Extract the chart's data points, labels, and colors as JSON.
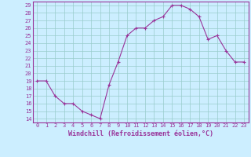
{
  "x": [
    0,
    1,
    2,
    3,
    4,
    5,
    6,
    7,
    8,
    9,
    10,
    11,
    12,
    13,
    14,
    15,
    16,
    17,
    18,
    19,
    20,
    21,
    22,
    23
  ],
  "y": [
    19,
    19,
    17,
    16,
    16,
    15,
    14.5,
    14,
    18.5,
    21.5,
    25,
    26,
    26,
    27,
    27.5,
    29,
    29,
    28.5,
    27.5,
    24.5,
    25,
    23,
    21.5,
    21.5
  ],
  "line_color": "#993399",
  "marker": "+",
  "marker_color": "#993399",
  "bg_color": "#cceeff",
  "grid_color": "#99cccc",
  "xlabel": "Windchill (Refroidissement éolien,°C)",
  "xlabel_color": "#993399",
  "tick_color": "#993399",
  "spine_color": "#993399",
  "ylim": [
    13.5,
    29.5
  ],
  "xlim": [
    -0.5,
    23.5
  ],
  "yticks": [
    14,
    15,
    16,
    17,
    18,
    19,
    20,
    21,
    22,
    23,
    24,
    25,
    26,
    27,
    28,
    29
  ],
  "xticks": [
    0,
    1,
    2,
    3,
    4,
    5,
    6,
    7,
    8,
    9,
    10,
    11,
    12,
    13,
    14,
    15,
    16,
    17,
    18,
    19,
    20,
    21,
    22,
    23
  ],
  "tick_fontsize": 5.0,
  "xlabel_fontsize": 6.0,
  "linewidth": 0.8,
  "markersize": 3.0
}
